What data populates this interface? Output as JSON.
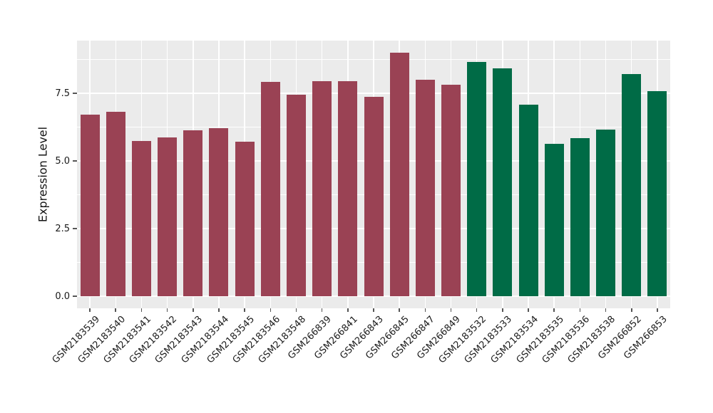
{
  "chart_data": {
    "type": "bar",
    "title": "",
    "xlabel": "",
    "ylabel": "Expression Level",
    "ylim": [
      0,
      9.45
    ],
    "yticks": [
      0.0,
      2.5,
      5.0,
      7.5
    ],
    "ytick_labels": [
      "0.0",
      "2.5",
      "5.0",
      "7.5"
    ],
    "yticks_minor": [
      1.25,
      3.75,
      6.25,
      8.75
    ],
    "grid": "on",
    "legend": "none",
    "categories": [
      "GSM2183539",
      "GSM2183540",
      "GSM2183541",
      "GSM2183542",
      "GSM2183543",
      "GSM2183544",
      "GSM2183545",
      "GSM2183546",
      "GSM2183548",
      "GSM266839",
      "GSM266841",
      "GSM266843",
      "GSM266845",
      "GSM266847",
      "GSM266849",
      "GSM2183532",
      "GSM2183533",
      "GSM2183534",
      "GSM2183535",
      "GSM2183536",
      "GSM2183538",
      "GSM266852",
      "GSM266853"
    ],
    "values": [
      6.72,
      6.82,
      5.74,
      5.88,
      6.13,
      6.21,
      5.72,
      7.92,
      7.45,
      7.94,
      7.94,
      7.37,
      9.0,
      8.01,
      7.81,
      8.65,
      8.43,
      7.07,
      5.62,
      5.85,
      6.17,
      8.21,
      7.57
    ],
    "bar_groups": [
      "group1",
      "group1",
      "group1",
      "group1",
      "group1",
      "group1",
      "group1",
      "group1",
      "group1",
      "group1",
      "group1",
      "group1",
      "group1",
      "group1",
      "group1",
      "group2",
      "group2",
      "group2",
      "group2",
      "group2",
      "group2",
      "group2",
      "group2"
    ],
    "group_colors": {
      "group1": "#9A4254",
      "group2": "#006B46"
    },
    "colors": {
      "panel_bg": "#EBEBEB",
      "grid_major": "#FFFFFF",
      "grid_minor": "#FFFFFF",
      "tick_mark": "#555555",
      "axis_text": "#1A1A1A",
      "figure_bg": "#FFFFFF"
    }
  }
}
